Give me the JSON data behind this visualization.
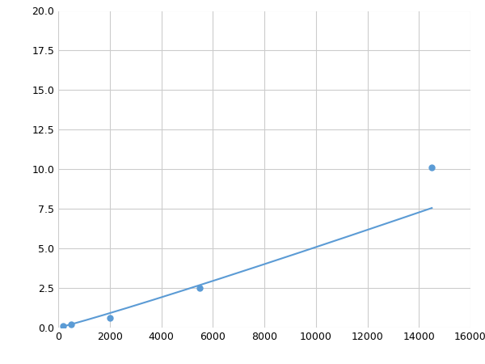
{
  "x": [
    200,
    500,
    2000,
    5500,
    14500
  ],
  "y": [
    0.1,
    0.2,
    0.6,
    2.5,
    10.1
  ],
  "line_color": "#5b9bd5",
  "marker_color": "#5b9bd5",
  "marker_size": 5,
  "line_width": 1.5,
  "xlim": [
    0,
    16000
  ],
  "ylim": [
    0,
    20
  ],
  "xticks": [
    0,
    2000,
    4000,
    6000,
    8000,
    10000,
    12000,
    14000,
    16000
  ],
  "yticks": [
    0.0,
    2.5,
    5.0,
    7.5,
    10.0,
    12.5,
    15.0,
    17.5,
    20.0
  ],
  "grid_color": "#cccccc",
  "background_color": "#ffffff"
}
